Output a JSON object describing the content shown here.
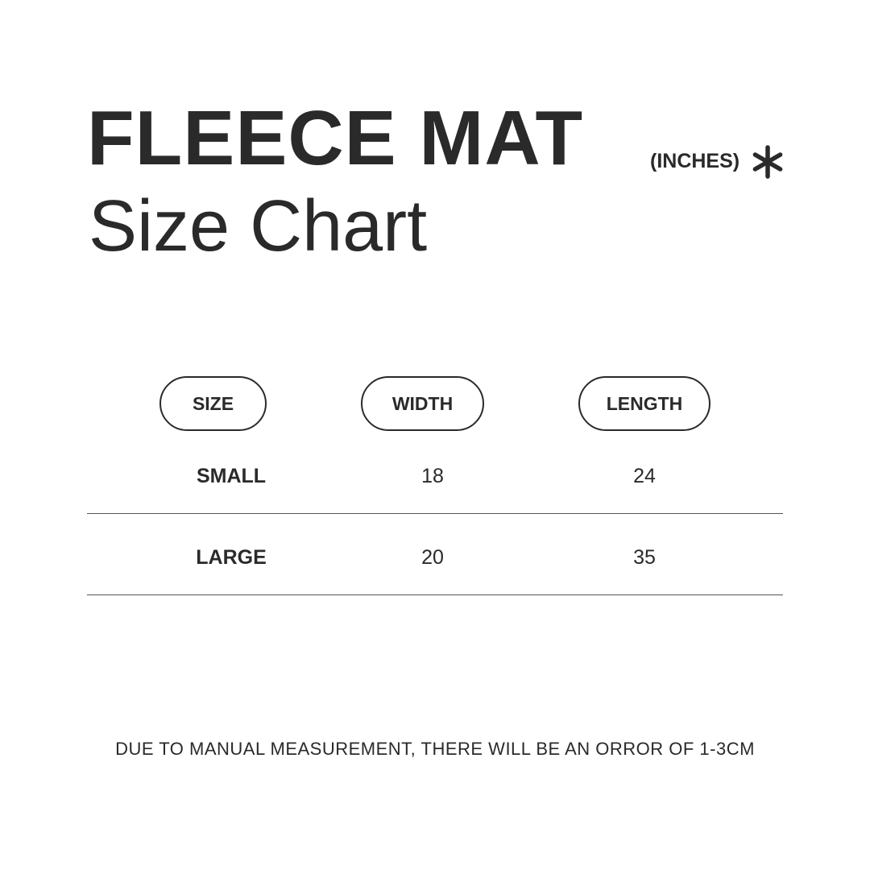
{
  "title": "FLEECE MAT",
  "subtitle": "Size Chart",
  "unit_label": "(INCHES)",
  "unit_icon": "asterisk-icon",
  "table": {
    "headers": [
      "SIZE",
      "WIDTH",
      "LENGTH"
    ],
    "rows": [
      {
        "size": "SMALL",
        "width": "18",
        "length": "24"
      },
      {
        "size": "LARGE",
        "width": "20",
        "length": "35"
      }
    ]
  },
  "note": "DUE TO MANUAL MEASUREMENT, THERE WILL BE AN ORROR OF 1-3CM"
}
